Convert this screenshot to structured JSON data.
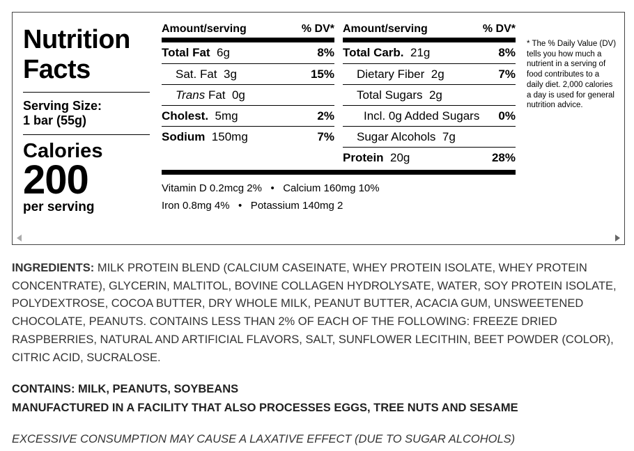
{
  "panel": {
    "title_line1": "Nutrition",
    "title_line2": "Facts",
    "serving_line1": "Serving Size:",
    "serving_line2": "1 bar (55g)",
    "calories_label": "Calories",
    "calories_value": "200",
    "per_serving": "per serving",
    "left_table": {
      "head_amount": "Amount/serving",
      "head_dv": "% DV*",
      "rows": [
        {
          "name": "Total Fat",
          "amount": "6g",
          "pct": "8%"
        },
        {
          "name": "Sat. Fat",
          "amount": "3g",
          "pct": "15%"
        },
        {
          "name_italic": "Trans",
          "name": "Fat",
          "amount": "0g",
          "pct": ""
        },
        {
          "name": "Cholest.",
          "amount": "5mg",
          "pct": "2%"
        },
        {
          "name": "Sodium",
          "amount": "150mg",
          "pct": "7%"
        }
      ]
    },
    "right_table": {
      "head_amount": "Amount/serving",
      "head_dv": "% DV*",
      "rows": [
        {
          "name": "Total Carb.",
          "amount": "21g",
          "pct": "8%"
        },
        {
          "name": "Dietary Fiber",
          "amount": "2g",
          "pct": "7%"
        },
        {
          "name": "Total Sugars",
          "amount": "2g",
          "pct": ""
        },
        {
          "name": "Incl. 0g Added Sugars",
          "amount": "",
          "pct": "0%"
        },
        {
          "name": "Sugar Alcohols",
          "amount": "7g",
          "pct": ""
        },
        {
          "name": "Protein",
          "amount": "20g",
          "pct": "28%"
        }
      ]
    },
    "vitamins_line1": "Vitamin D 0.2mcg 2%   •   Calcium 160mg 10%",
    "vitamins_line2": "Iron 0.8mg 4%   •   Potassium 140mg 2",
    "footnote": "* The % Daily Value (DV) tells you how much a nutrient in a serving of food contributes to a daily diet. 2,000 calories a day is used for general nutrition advice."
  },
  "ingredients": {
    "label": "INGREDIENTS:",
    "text": " MILK PROTEIN BLEND (CALCIUM CASEINATE, WHEY PROTEIN ISOLATE, WHEY PROTEIN CONCENTRATE), GLYCERIN, MALTITOL, BOVINE COLLAGEN HYDROLYSATE, WATER, SOY PROTEIN ISOLATE, POLYDEXTROSE, COCOA BUTTER, DRY WHOLE MILK, PEANUT BUTTER, ACACIA GUM, UNSWEETENED CHOCOLATE, PEANUTS. CONTAINS LESS THAN 2% OF EACH OF THE FOLLOWING: FREEZE DRIED RASPBERRIES, NATURAL AND ARTIFICIAL FLAVORS, SALT, SUNFLOWER LECITHIN, BEET POWDER (COLOR), CITRIC ACID, SUCRALOSE."
  },
  "contains_line": "CONTAINS: MILK, PEANUTS, SOYBEANS",
  "facility_line": "MANUFACTURED IN A FACILITY THAT ALSO PROCESSES EGGS, TREE NUTS AND SESAME",
  "warning": "EXCESSIVE CONSUMPTION MAY CAUSE A LAXATIVE EFFECT (DUE TO SUGAR ALCOHOLS)"
}
